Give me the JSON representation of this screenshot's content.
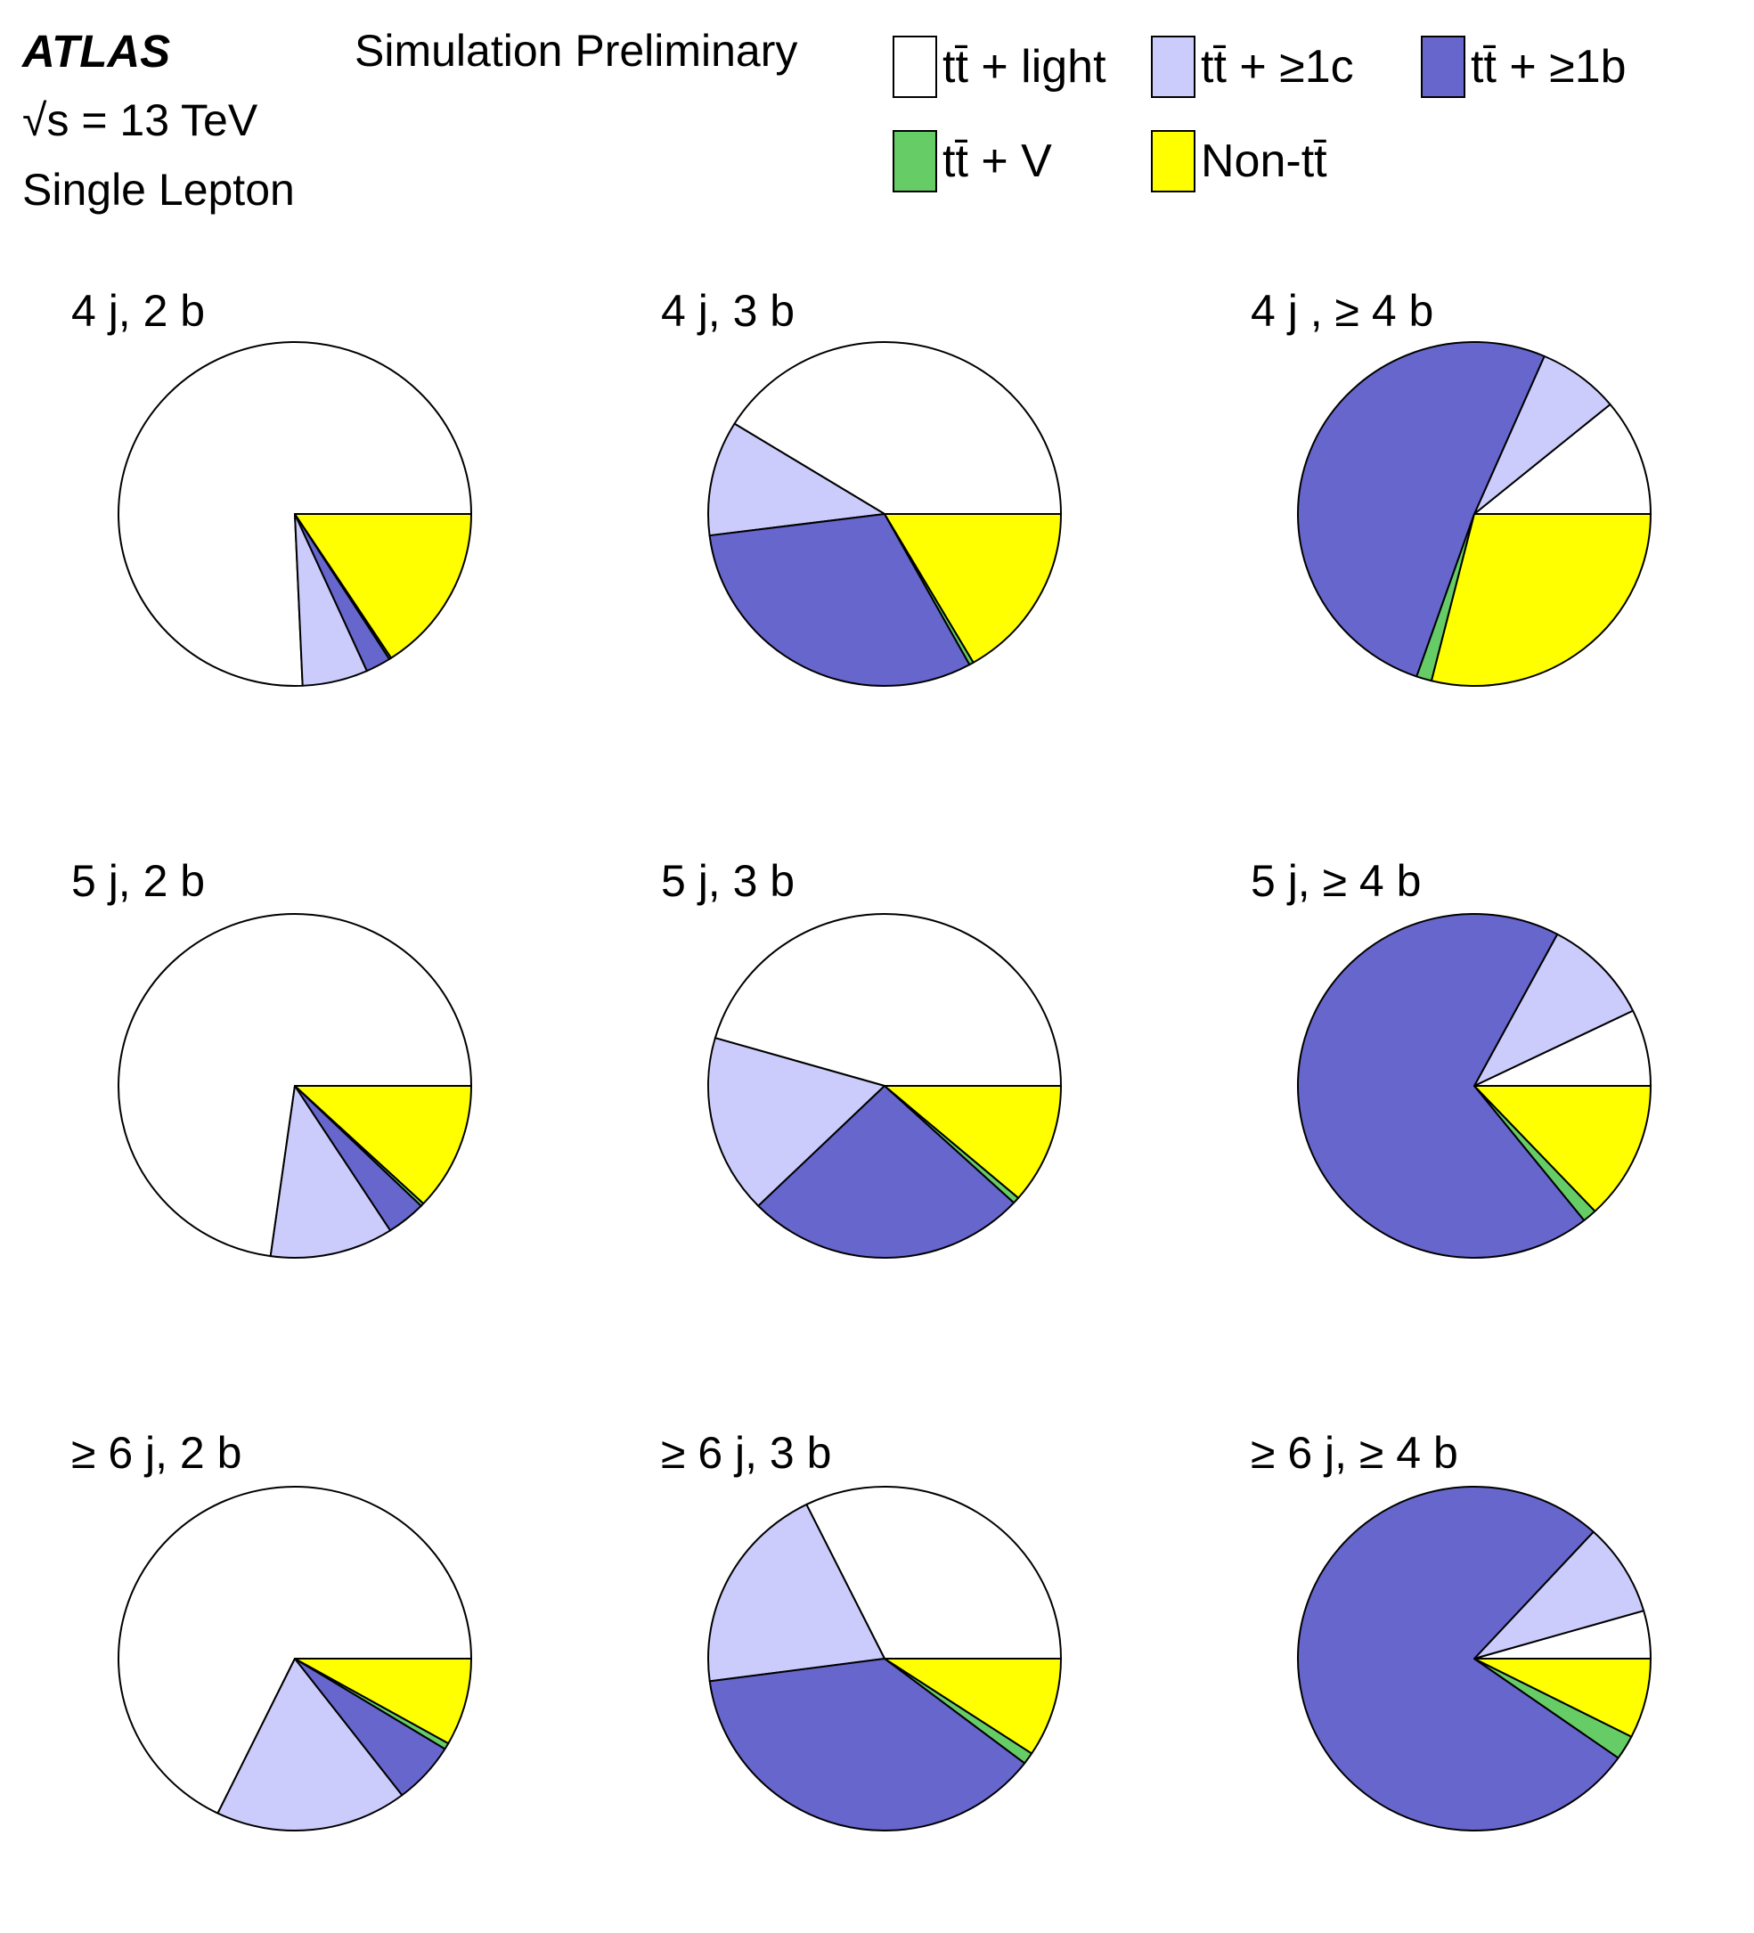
{
  "header": {
    "experiment": "ATLAS",
    "label": "Simulation Preliminary",
    "energy": "√s = 13 TeV",
    "channel": "Single Lepton"
  },
  "legend": [
    {
      "key": "light",
      "label": "tt̄ + light",
      "color": "#ffffff"
    },
    {
      "key": "c",
      "label": "tt̄ + ≥1c",
      "color": "#ccccfc"
    },
    {
      "key": "b",
      "label": "tt̄ + ≥1b",
      "color": "#6666cc"
    },
    {
      "key": "v",
      "label": "tt̄ + V",
      "color": "#66cc66"
    },
    {
      "key": "nontt",
      "label": "Non-tt̄",
      "color": "#ffff00"
    }
  ],
  "chart_data": {
    "type": "pie",
    "categories": [
      "tt̄ + light",
      "tt̄ + ≥1c",
      "tt̄ + ≥1b",
      "tt̄ + V",
      "Non-tt̄"
    ],
    "panels": [
      {
        "title": "4 j, 2 b",
        "values": [
          75.7,
          6.0,
          2.3,
          0.2,
          15.8
        ]
      },
      {
        "title": "4 j, 3 b",
        "values": [
          41.2,
          10.8,
          31.0,
          0.4,
          16.6
        ]
      },
      {
        "title": "4 j , ≥ 4 b",
        "values": [
          11.0,
          7.5,
          51.2,
          1.4,
          28.9
        ]
      },
      {
        "title": "5 j, 2 b",
        "values": [
          72.8,
          11.3,
          3.6,
          0.3,
          12.0
        ]
      },
      {
        "title": "5 j, 3 b",
        "values": [
          45.5,
          16.8,
          25.8,
          0.6,
          11.3
        ]
      },
      {
        "title": "5 j, ≥ 4 b",
        "values": [
          7.2,
          10.0,
          68.5,
          1.3,
          13.0
        ]
      },
      {
        "title": "≥ 6 j, 2 b",
        "values": [
          67.8,
          17.6,
          5.8,
          0.6,
          8.2
        ]
      },
      {
        "title": "≥ 6 j, 3 b",
        "values": [
          32.3,
          19.8,
          37.5,
          1.1,
          9.3
        ]
      },
      {
        "title": "≥ 6 j, ≥ 4 b",
        "values": [
          4.5,
          8.7,
          77.0,
          2.3,
          7.5
        ]
      }
    ]
  }
}
